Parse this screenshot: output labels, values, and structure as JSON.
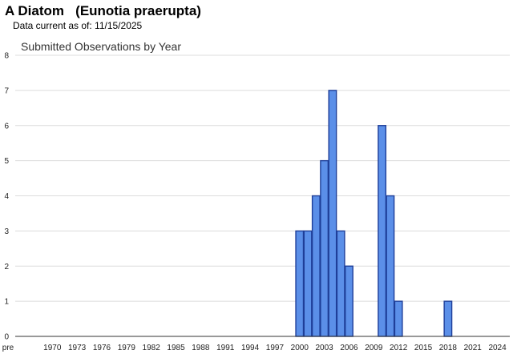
{
  "header": {
    "species_title": "A Diatom   (Eunotia praerupta)",
    "data_current": "Data current as of: 11/15/2025"
  },
  "colors": {
    "bar_fill": "#5b8fe8",
    "bar_stroke": "#1f3f99",
    "grid": "#dcdcdc"
  },
  "chart_data": {
    "type": "bar",
    "title": "Submitted Observations by Year",
    "xlabel": "",
    "ylabel": "",
    "ylim": [
      0,
      8
    ],
    "y_ticks": [
      0,
      1,
      2,
      3,
      4,
      5,
      6,
      7,
      8
    ],
    "grid": true,
    "legend": "none",
    "x_range": [
      1966,
      2026
    ],
    "x_tick_labels": [
      {
        "year": 1967,
        "label": "pre"
      },
      {
        "year": 1970,
        "label": "1970"
      },
      {
        "year": 1973,
        "label": "1973"
      },
      {
        "year": 1976,
        "label": "1976"
      },
      {
        "year": 1979,
        "label": "1979"
      },
      {
        "year": 1982,
        "label": "1982"
      },
      {
        "year": 1985,
        "label": "1985"
      },
      {
        "year": 1988,
        "label": "1988"
      },
      {
        "year": 1991,
        "label": "1991"
      },
      {
        "year": 1994,
        "label": "1994"
      },
      {
        "year": 1997,
        "label": "1997"
      },
      {
        "year": 2000,
        "label": "2000"
      },
      {
        "year": 2003,
        "label": "2003"
      },
      {
        "year": 2006,
        "label": "2006"
      },
      {
        "year": 2009,
        "label": "2009"
      },
      {
        "year": 2012,
        "label": "2012"
      },
      {
        "year": 2015,
        "label": "2015"
      },
      {
        "year": 2018,
        "label": "2018"
      },
      {
        "year": 2021,
        "label": "2021"
      },
      {
        "year": 2024,
        "label": "2024"
      }
    ],
    "categories": [
      2000,
      2001,
      2002,
      2003,
      2004,
      2005,
      2006,
      2010,
      2011,
      2012,
      2018
    ],
    "values": [
      3,
      3,
      4,
      5,
      7,
      3,
      2,
      6,
      4,
      1,
      1
    ]
  }
}
